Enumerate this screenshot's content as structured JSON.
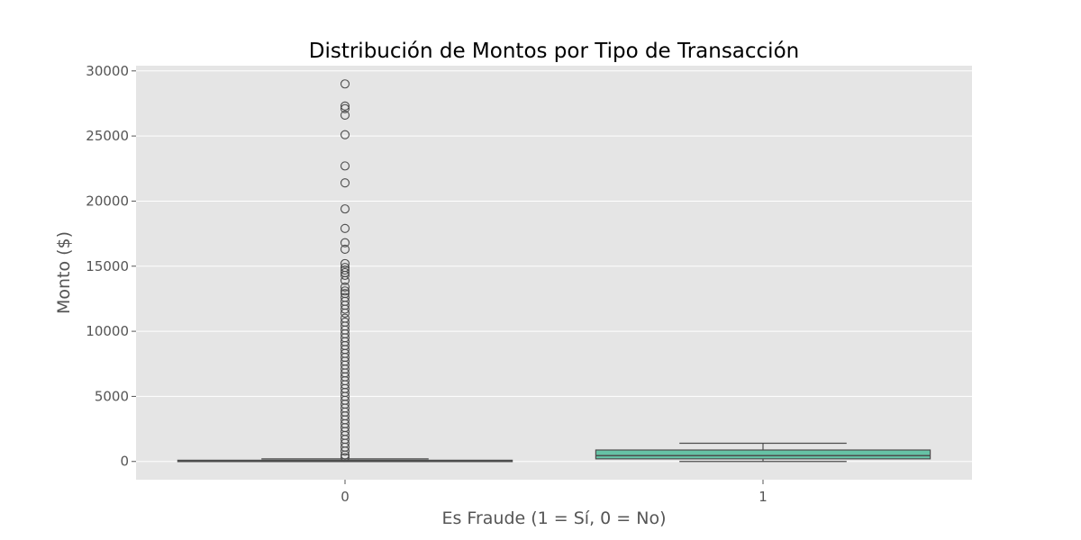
{
  "chart_data": {
    "type": "box",
    "title": "Distribución de Montos por Tipo de Transacción",
    "xlabel": "Es Fraude (1 = Sí, 0 = No)",
    "ylabel": "Monto ($)",
    "ylim": [
      -1400,
      30400
    ],
    "yticks": [
      0,
      5000,
      10000,
      15000,
      20000,
      25000,
      30000
    ],
    "ytick_labels": [
      "0",
      "5000",
      "10000",
      "15000",
      "20000",
      "25000",
      "30000"
    ],
    "grid": true,
    "background": "#e5e5e5",
    "categories": [
      "0",
      "1"
    ],
    "boxes": [
      {
        "category": "0",
        "color": "#66c2a5",
        "whisker_low": 0,
        "q1": 5,
        "median": 30,
        "q3": 95,
        "whisker_high": 200,
        "outliers": [
          29000,
          27300,
          27100,
          26600,
          25100,
          22700,
          21400,
          19400,
          17900,
          16800,
          16300,
          15200,
          14900,
          14700,
          14500,
          14300,
          13900,
          13400,
          13100,
          12900,
          12600,
          12300,
          12000,
          11700,
          11400,
          11000,
          10700,
          10400,
          10100,
          9800,
          9500,
          9200,
          8900,
          8600,
          8300,
          8000,
          7700,
          7400,
          7100,
          6800,
          6500,
          6200,
          5900,
          5600,
          5300,
          5000,
          4700,
          4400,
          4100,
          3800,
          3500,
          3200,
          2900,
          2600,
          2300,
          2000,
          1700,
          1400,
          1100,
          800,
          500,
          300
        ]
      },
      {
        "category": "1",
        "color": "#66c2a5",
        "whisker_low": 0,
        "q1": 200,
        "median": 450,
        "q3": 880,
        "whisker_high": 1400,
        "outliers": []
      }
    ]
  }
}
